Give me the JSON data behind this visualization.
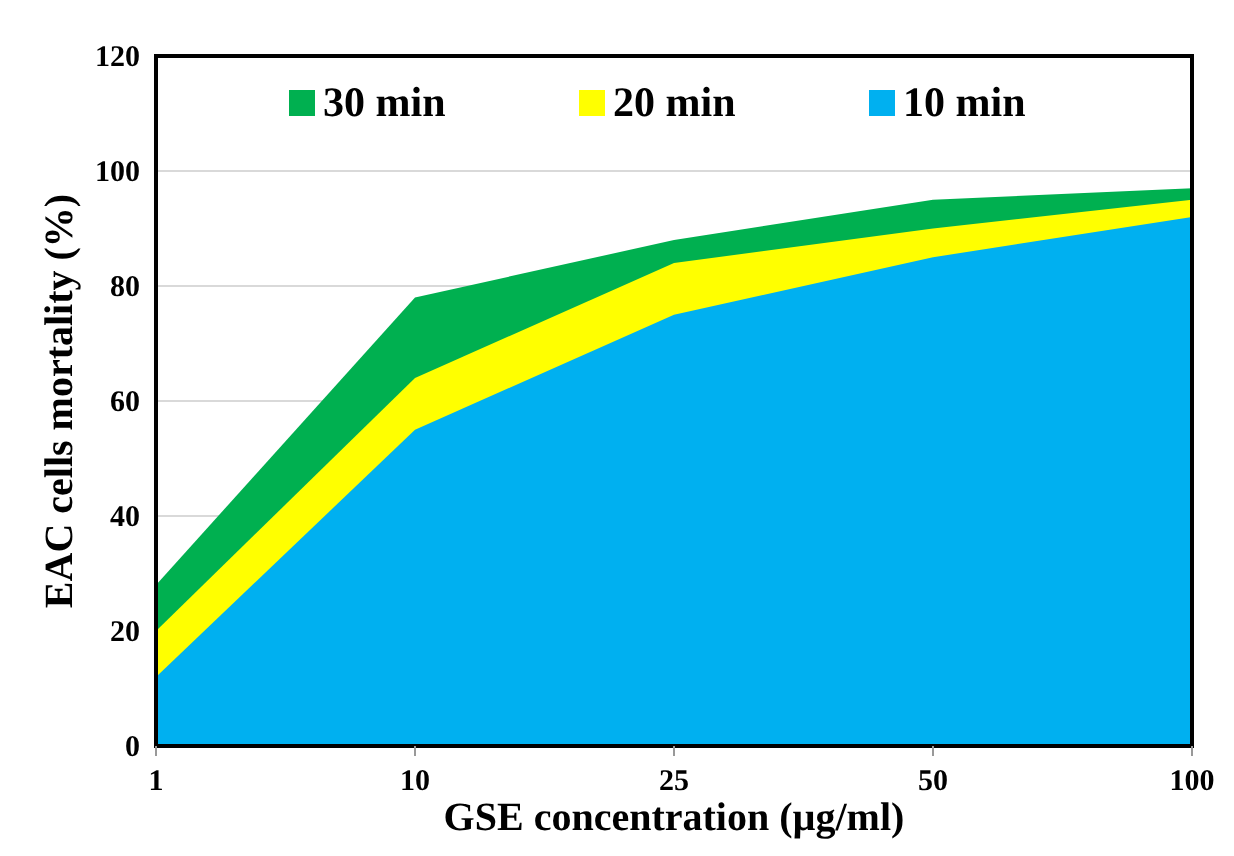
{
  "chart_data": {
    "type": "area",
    "xlabel": "GSE concentration (µg/ml)",
    "ylabel": "EAC cells mortality (%)",
    "categories": [
      "1",
      "10",
      "25",
      "50",
      "100"
    ],
    "series": [
      {
        "name": "30 min",
        "color": "#00b050",
        "values": [
          28,
          78,
          88,
          95,
          97
        ]
      },
      {
        "name": "20 min",
        "color": "#ffff00",
        "values": [
          20,
          64,
          84,
          90,
          95
        ]
      },
      {
        "name": "10 min",
        "color": "#00b0f0",
        "values": [
          12,
          55,
          75,
          85,
          92
        ]
      }
    ],
    "ylim": [
      0,
      120
    ],
    "yticks": [
      0,
      20,
      40,
      60,
      80,
      100,
      120
    ],
    "grid": "y",
    "legend": "top"
  }
}
